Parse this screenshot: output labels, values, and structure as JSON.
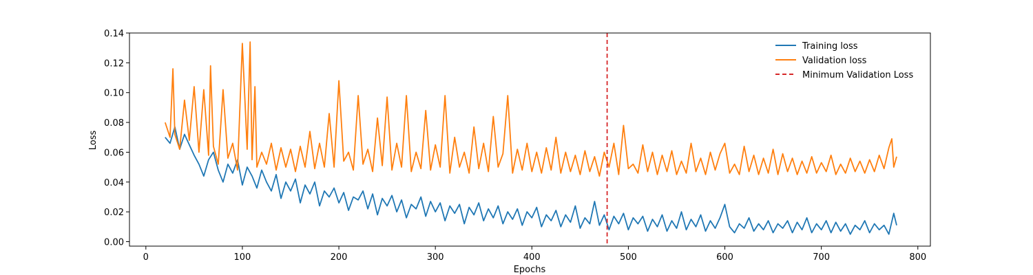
{
  "chart_data": {
    "type": "line",
    "title": "",
    "xlabel": "Epochs",
    "ylabel": "Loss",
    "xlim": [
      -17,
      813
    ],
    "ylim": [
      -0.003,
      0.14
    ],
    "xticks": [
      0,
      100,
      200,
      300,
      400,
      500,
      600,
      700,
      800
    ],
    "xtick_labels": [
      "0",
      "100",
      "200",
      "300",
      "400",
      "500",
      "600",
      "700",
      "800"
    ],
    "yticks": [
      0.0,
      0.02,
      0.04,
      0.06,
      0.08,
      0.1,
      0.12,
      0.14
    ],
    "ytick_labels": [
      "0.00",
      "0.02",
      "0.04",
      "0.06",
      "0.08",
      "0.10",
      "0.12",
      "0.14"
    ],
    "grid": false,
    "legend_position": "top-right",
    "series": [
      {
        "name": "Training loss",
        "color": "#1f77b4",
        "x": [
          20,
          25,
          30,
          35,
          40,
          45,
          50,
          55,
          60,
          65,
          70,
          75,
          80,
          85,
          90,
          95,
          100,
          105,
          110,
          115,
          120,
          125,
          130,
          135,
          140,
          145,
          150,
          155,
          160,
          165,
          170,
          175,
          180,
          185,
          190,
          195,
          200,
          205,
          210,
          215,
          220,
          225,
          230,
          235,
          240,
          245,
          250,
          255,
          260,
          265,
          270,
          275,
          280,
          285,
          290,
          295,
          300,
          305,
          310,
          315,
          320,
          325,
          330,
          335,
          340,
          345,
          350,
          355,
          360,
          365,
          370,
          375,
          380,
          385,
          390,
          395,
          400,
          405,
          410,
          415,
          420,
          425,
          430,
          435,
          440,
          445,
          450,
          455,
          460,
          465,
          470,
          475,
          480,
          485,
          490,
          495,
          500,
          505,
          510,
          515,
          520,
          525,
          530,
          535,
          540,
          545,
          550,
          555,
          560,
          565,
          570,
          575,
          580,
          585,
          590,
          595,
          600,
          605,
          610,
          615,
          620,
          625,
          630,
          635,
          640,
          645,
          650,
          655,
          660,
          665,
          670,
          675,
          680,
          685,
          690,
          695,
          700,
          705,
          710,
          715,
          720,
          725,
          730,
          735,
          740,
          745,
          750,
          755,
          760,
          765,
          770,
          775,
          778
        ],
        "values": [
          0.07,
          0.066,
          0.077,
          0.062,
          0.072,
          0.065,
          0.058,
          0.052,
          0.044,
          0.055,
          0.06,
          0.048,
          0.04,
          0.052,
          0.046,
          0.055,
          0.038,
          0.05,
          0.044,
          0.036,
          0.048,
          0.04,
          0.034,
          0.045,
          0.029,
          0.04,
          0.034,
          0.042,
          0.026,
          0.038,
          0.032,
          0.04,
          0.024,
          0.034,
          0.03,
          0.036,
          0.026,
          0.033,
          0.021,
          0.03,
          0.028,
          0.034,
          0.022,
          0.032,
          0.018,
          0.029,
          0.024,
          0.031,
          0.02,
          0.028,
          0.016,
          0.025,
          0.022,
          0.03,
          0.017,
          0.027,
          0.02,
          0.026,
          0.014,
          0.024,
          0.019,
          0.025,
          0.012,
          0.023,
          0.018,
          0.026,
          0.014,
          0.022,
          0.016,
          0.024,
          0.012,
          0.02,
          0.015,
          0.022,
          0.011,
          0.02,
          0.016,
          0.023,
          0.01,
          0.018,
          0.014,
          0.021,
          0.01,
          0.018,
          0.013,
          0.024,
          0.009,
          0.016,
          0.012,
          0.027,
          0.011,
          0.018,
          0.008,
          0.017,
          0.012,
          0.019,
          0.008,
          0.016,
          0.012,
          0.017,
          0.007,
          0.015,
          0.01,
          0.018,
          0.007,
          0.014,
          0.009,
          0.02,
          0.008,
          0.015,
          0.01,
          0.018,
          0.007,
          0.014,
          0.009,
          0.016,
          0.025,
          0.01,
          0.006,
          0.012,
          0.009,
          0.016,
          0.007,
          0.012,
          0.008,
          0.014,
          0.006,
          0.012,
          0.009,
          0.014,
          0.006,
          0.013,
          0.008,
          0.016,
          0.006,
          0.012,
          0.008,
          0.014,
          0.006,
          0.013,
          0.007,
          0.012,
          0.005,
          0.011,
          0.008,
          0.014,
          0.006,
          0.012,
          0.008,
          0.011,
          0.005,
          0.019,
          0.011
        ]
      },
      {
        "name": "Validation loss",
        "color": "#ff7f0e",
        "x": [
          20,
          25,
          28,
          30,
          35,
          40,
          45,
          50,
          55,
          60,
          65,
          67,
          70,
          75,
          80,
          85,
          90,
          95,
          100,
          105,
          108,
          110,
          113,
          115,
          120,
          125,
          130,
          135,
          140,
          145,
          150,
          155,
          160,
          165,
          170,
          175,
          180,
          185,
          190,
          195,
          200,
          205,
          210,
          215,
          220,
          225,
          230,
          235,
          240,
          245,
          250,
          255,
          260,
          265,
          270,
          275,
          280,
          285,
          290,
          295,
          300,
          305,
          310,
          315,
          320,
          325,
          330,
          335,
          340,
          345,
          350,
          355,
          360,
          365,
          370,
          375,
          380,
          385,
          390,
          395,
          400,
          405,
          410,
          415,
          420,
          425,
          430,
          435,
          440,
          445,
          450,
          455,
          460,
          465,
          470,
          475,
          480,
          485,
          490,
          495,
          500,
          505,
          510,
          515,
          520,
          525,
          530,
          535,
          540,
          545,
          550,
          555,
          560,
          565,
          570,
          575,
          580,
          585,
          590,
          595,
          600,
          605,
          610,
          615,
          620,
          625,
          630,
          635,
          640,
          645,
          650,
          655,
          660,
          665,
          670,
          675,
          680,
          685,
          690,
          695,
          700,
          705,
          710,
          715,
          720,
          725,
          730,
          735,
          740,
          745,
          750,
          755,
          760,
          765,
          770,
          773,
          775,
          778
        ],
        "values": [
          0.08,
          0.07,
          0.116,
          0.072,
          0.062,
          0.095,
          0.068,
          0.104,
          0.06,
          0.102,
          0.058,
          0.118,
          0.064,
          0.052,
          0.102,
          0.056,
          0.066,
          0.048,
          0.133,
          0.062,
          0.134,
          0.055,
          0.104,
          0.05,
          0.06,
          0.052,
          0.066,
          0.048,
          0.063,
          0.05,
          0.062,
          0.047,
          0.064,
          0.05,
          0.074,
          0.049,
          0.066,
          0.05,
          0.086,
          0.05,
          0.108,
          0.054,
          0.06,
          0.048,
          0.098,
          0.052,
          0.062,
          0.047,
          0.083,
          0.051,
          0.097,
          0.048,
          0.066,
          0.05,
          0.098,
          0.047,
          0.06,
          0.049,
          0.088,
          0.048,
          0.065,
          0.05,
          0.098,
          0.046,
          0.07,
          0.05,
          0.06,
          0.046,
          0.077,
          0.049,
          0.066,
          0.047,
          0.084,
          0.05,
          0.059,
          0.098,
          0.046,
          0.062,
          0.048,
          0.066,
          0.047,
          0.06,
          0.046,
          0.063,
          0.048,
          0.07,
          0.046,
          0.06,
          0.047,
          0.058,
          0.045,
          0.061,
          0.047,
          0.057,
          0.044,
          0.06,
          0.05,
          0.066,
          0.045,
          0.078,
          0.049,
          0.052,
          0.046,
          0.065,
          0.047,
          0.06,
          0.045,
          0.058,
          0.047,
          0.061,
          0.045,
          0.054,
          0.046,
          0.066,
          0.047,
          0.056,
          0.045,
          0.06,
          0.048,
          0.059,
          0.066,
          0.046,
          0.052,
          0.045,
          0.064,
          0.047,
          0.058,
          0.045,
          0.056,
          0.046,
          0.062,
          0.045,
          0.059,
          0.047,
          0.056,
          0.045,
          0.054,
          0.046,
          0.057,
          0.046,
          0.053,
          0.047,
          0.058,
          0.045,
          0.052,
          0.046,
          0.056,
          0.047,
          0.054,
          0.046,
          0.055,
          0.047,
          0.058,
          0.049,
          0.063,
          0.069,
          0.05,
          0.057
        ]
      }
    ],
    "vertical_line": {
      "name": "Minimum Validation Loss",
      "x": 478,
      "color": "#d62728",
      "style": "dashed"
    }
  }
}
